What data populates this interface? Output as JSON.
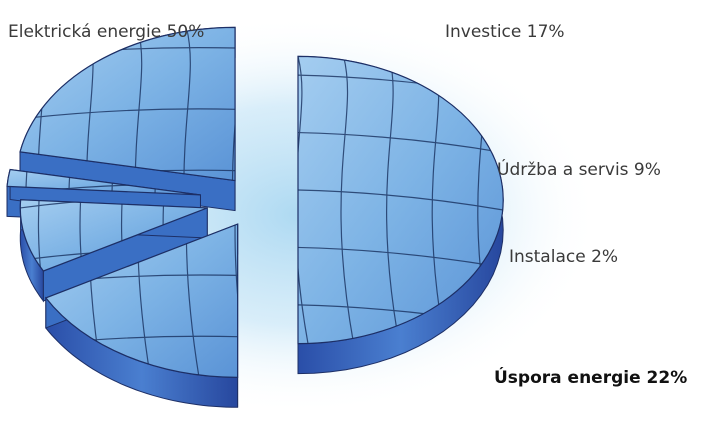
{
  "chart_data": {
    "type": "pie",
    "title": "",
    "categories": [
      "Elektrická energie",
      "Investice",
      "Údržba a servis",
      "Instalace",
      "Úspora energie"
    ],
    "values": [
      50,
      17,
      9,
      2,
      22
    ],
    "labels": [
      "Elektrická energie 50%",
      "Investice 17%",
      "Údržba a servis 9%",
      "Instalace 2%",
      "Úspora energie 22%"
    ],
    "exploded": true,
    "three_d": true,
    "emphasized_slice": "Úspora energie",
    "colors": {
      "slice_top": "#7fb6e6",
      "slice_side": "#3a6fc4",
      "slice_edge": "#1d2f66",
      "pattern_line": "#18305e",
      "background_glow": "#a9d7f1"
    }
  }
}
